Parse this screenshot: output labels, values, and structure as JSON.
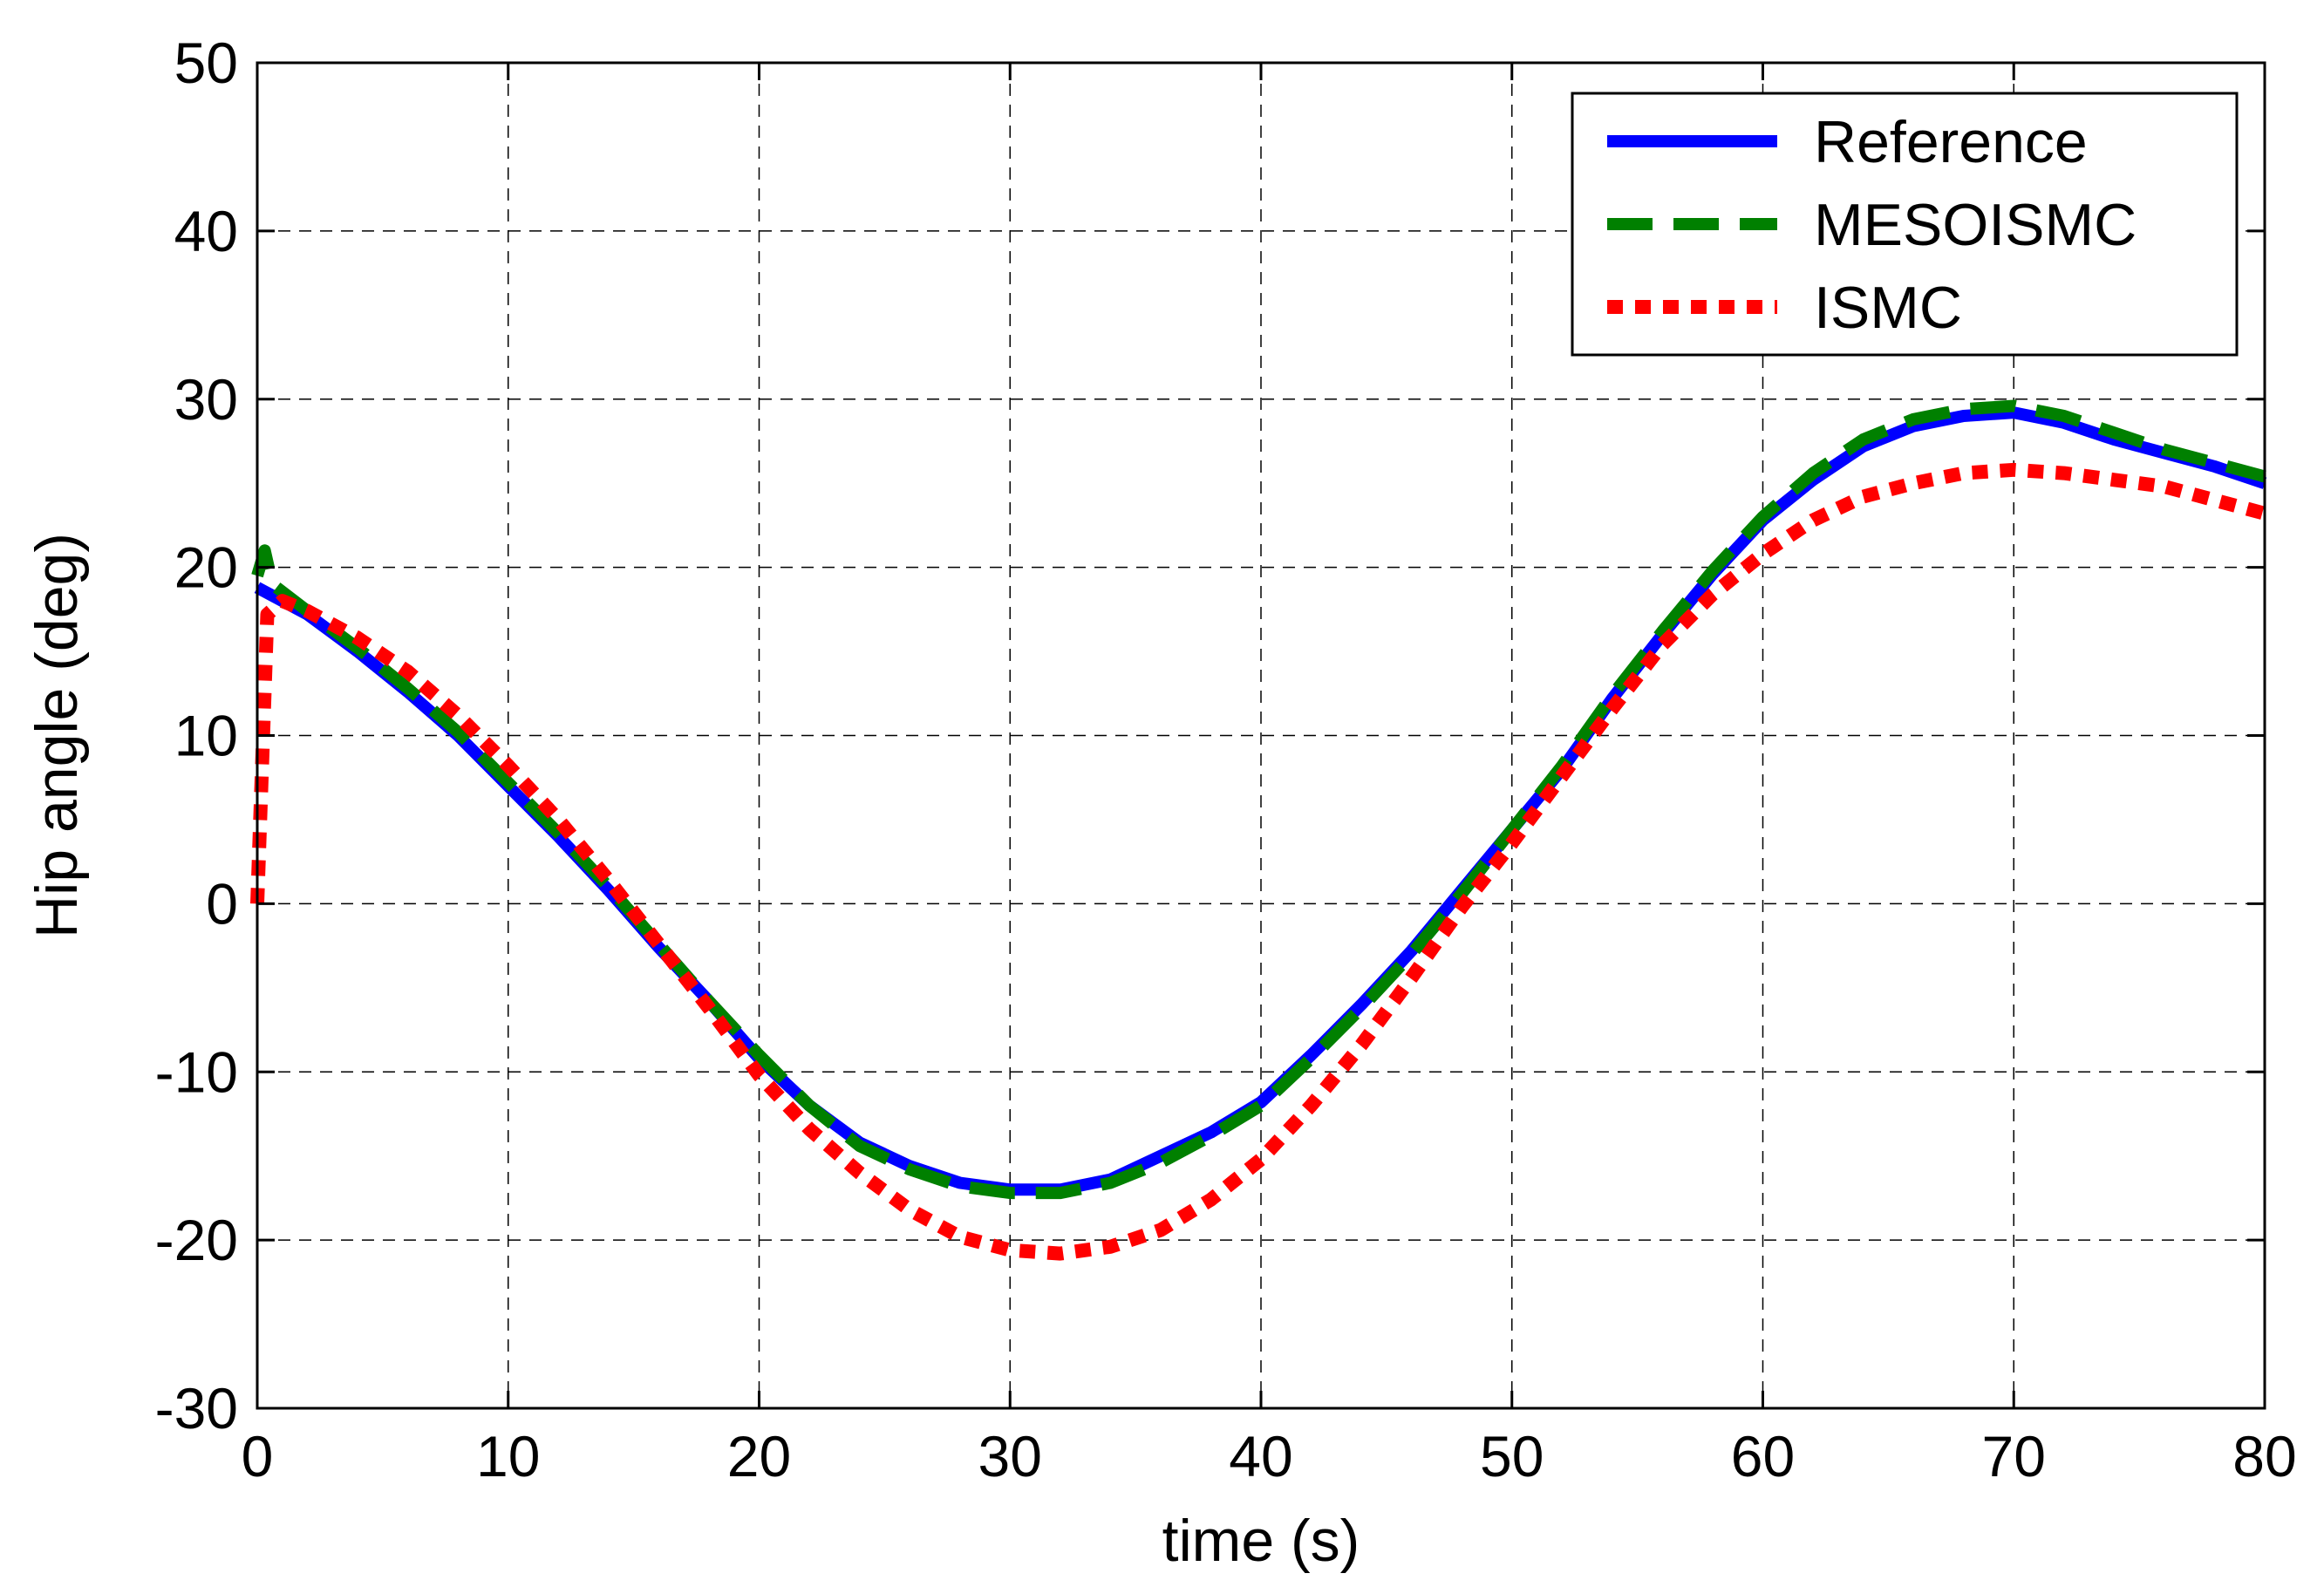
{
  "chart_data": {
    "type": "line",
    "title": "",
    "xlabel": "time (s)",
    "ylabel": "Hip angle (deg)",
    "xlim": [
      0,
      80
    ],
    "ylim": [
      -30,
      50
    ],
    "xticks": [
      0,
      10,
      20,
      30,
      40,
      50,
      60,
      70,
      80
    ],
    "yticks": [
      -30,
      -20,
      -10,
      0,
      10,
      20,
      30,
      40,
      50
    ],
    "grid": true,
    "legend_position": "top-right",
    "series": [
      {
        "name": "Reference",
        "color": "#0000ff",
        "style": "solid",
        "x": [
          0,
          2,
          4,
          6,
          8,
          10,
          12,
          14,
          16,
          18,
          20,
          22,
          24,
          26,
          28,
          30,
          32,
          34,
          36,
          38,
          40,
          42,
          44,
          46,
          48,
          50,
          52,
          54,
          56,
          58,
          60,
          62,
          64,
          66,
          68,
          70,
          72,
          74,
          76,
          78,
          80
        ],
        "y": [
          18.8,
          17.2,
          15.0,
          12.6,
          10.0,
          7.0,
          4.0,
          0.8,
          -2.6,
          -5.8,
          -9.2,
          -12.0,
          -14.2,
          -15.6,
          -16.6,
          -17.0,
          -17.0,
          -16.4,
          -15.0,
          -13.6,
          -11.8,
          -9.0,
          -6.0,
          -2.8,
          0.8,
          4.4,
          8.0,
          12.2,
          16.0,
          19.6,
          22.8,
          25.2,
          27.2,
          28.4,
          29.0,
          29.2,
          28.6,
          27.6,
          26.8,
          26.0,
          25.0
        ]
      },
      {
        "name": "MESOISMC",
        "color": "#008000",
        "style": "dashed",
        "x": [
          0,
          0.3,
          0.6,
          2,
          4,
          6,
          8,
          10,
          12,
          14,
          16,
          18,
          20,
          22,
          24,
          26,
          28,
          30,
          32,
          34,
          36,
          38,
          40,
          42,
          44,
          46,
          48,
          50,
          52,
          54,
          56,
          58,
          60,
          62,
          64,
          66,
          68,
          70,
          72,
          74,
          76,
          78,
          80
        ],
        "y": [
          19.5,
          21.0,
          19.0,
          17.4,
          15.2,
          12.8,
          10.2,
          7.2,
          4.2,
          1.0,
          -2.4,
          -5.8,
          -9.0,
          -12.0,
          -14.4,
          -15.8,
          -16.8,
          -17.2,
          -17.2,
          -16.6,
          -15.4,
          -13.8,
          -12.0,
          -9.2,
          -6.2,
          -3.0,
          0.6,
          4.4,
          8.2,
          12.4,
          16.2,
          19.8,
          23.0,
          25.6,
          27.6,
          28.8,
          29.4,
          29.6,
          29.0,
          28.0,
          27.0,
          26.2,
          25.4
        ]
      },
      {
        "name": "ISMC",
        "color": "#ff0000",
        "style": "dotted",
        "x": [
          0,
          0.4,
          1,
          2,
          4,
          6,
          8,
          10,
          12,
          14,
          16,
          18,
          20,
          22,
          24,
          26,
          28,
          30,
          32,
          34,
          36,
          38,
          40,
          42,
          44,
          46,
          48,
          50,
          52,
          54,
          56,
          58,
          60,
          62,
          64,
          66,
          68,
          70,
          72,
          74,
          76,
          78,
          80
        ],
        "y": [
          0.0,
          17.2,
          18.0,
          17.4,
          15.8,
          13.8,
          11.2,
          8.2,
          5.0,
          1.4,
          -2.4,
          -6.2,
          -10.2,
          -13.4,
          -16.0,
          -18.2,
          -19.8,
          -20.6,
          -20.8,
          -20.4,
          -19.4,
          -17.6,
          -15.2,
          -12.0,
          -8.4,
          -4.4,
          -0.2,
          3.6,
          7.6,
          11.6,
          15.4,
          18.4,
          20.8,
          22.8,
          24.2,
          25.0,
          25.6,
          25.8,
          25.6,
          25.2,
          24.8,
          24.0,
          23.2
        ]
      }
    ]
  }
}
